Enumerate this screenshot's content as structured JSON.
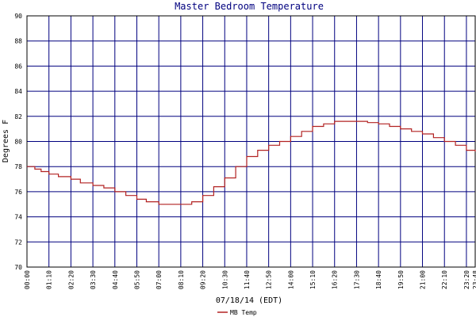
{
  "chart_data": {
    "type": "line",
    "title": "Master Bedroom Temperature",
    "xlabel": "07/18/14 (EDT)",
    "ylabel": "Degrees F",
    "ylim": [
      70,
      90
    ],
    "yticks": [
      "70",
      "72",
      "74",
      "76",
      "78",
      "80",
      "82",
      "84",
      "86",
      "88",
      "90"
    ],
    "xlim_minutes": [
      0,
      1428
    ],
    "xticks": [
      "00:00",
      "01:10",
      "02:20",
      "03:30",
      "04:40",
      "05:50",
      "07:00",
      "08:10",
      "09:20",
      "10:30",
      "11:40",
      "12:50",
      "14:00",
      "15:10",
      "16:20",
      "17:30",
      "18:40",
      "19:50",
      "21:00",
      "22:10",
      "23:20",
      "23:48"
    ],
    "grid": true,
    "legend_position": "bottom-left",
    "colors": {
      "background": "#ffffff",
      "grid": "#00007f",
      "axis": "#000000",
      "title": "#00007f",
      "line": "#b22222"
    },
    "series": [
      {
        "name": "MB Temp",
        "x": [
          "00:00",
          "00:25",
          "00:45",
          "01:10",
          "01:40",
          "02:20",
          "02:50",
          "03:30",
          "04:05",
          "04:40",
          "05:15",
          "05:50",
          "06:20",
          "07:00",
          "07:35",
          "08:10",
          "08:45",
          "09:20",
          "09:55",
          "10:30",
          "11:05",
          "11:40",
          "12:15",
          "12:50",
          "13:25",
          "14:00",
          "14:35",
          "15:10",
          "15:45",
          "16:20",
          "16:55",
          "17:30",
          "18:05",
          "18:40",
          "19:15",
          "19:50",
          "20:25",
          "21:00",
          "21:35",
          "22:10",
          "22:45",
          "23:20",
          "23:48"
        ],
        "values": [
          78.0,
          77.8,
          77.6,
          77.4,
          77.2,
          77.0,
          76.7,
          76.5,
          76.3,
          76.0,
          75.7,
          75.4,
          75.2,
          75.0,
          75.0,
          75.0,
          75.2,
          75.7,
          76.4,
          77.1,
          78.0,
          78.8,
          79.3,
          79.7,
          80.0,
          80.4,
          80.8,
          81.2,
          81.4,
          81.6,
          81.6,
          81.6,
          81.5,
          81.4,
          81.2,
          81.0,
          80.8,
          80.6,
          80.3,
          80.0,
          79.7,
          79.3,
          79.2
        ]
      }
    ]
  }
}
